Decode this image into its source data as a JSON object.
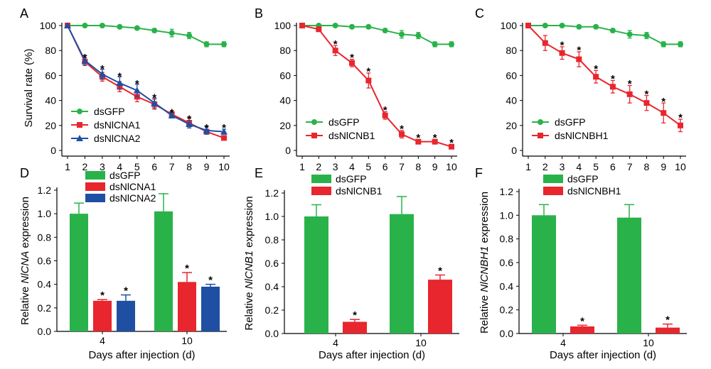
{
  "colors": {
    "dsGFP": "#2ab24a",
    "red": "#e8262d",
    "blue": "#1f4fa3"
  },
  "chart_data": [
    {
      "panel": "A",
      "type": "line",
      "x": [
        1,
        2,
        3,
        4,
        5,
        6,
        7,
        8,
        9,
        10
      ],
      "xticks": [
        "1",
        "2",
        "3",
        "4",
        "5",
        "6",
        "7",
        "8",
        "9",
        "10"
      ],
      "ylabel": "Survival rate (%)",
      "ylim": [
        0,
        100
      ],
      "yticks": [
        "0",
        "20",
        "40",
        "60",
        "80",
        "100"
      ],
      "series": [
        {
          "name": "dsGFP",
          "color": "dsGFP",
          "marker": "circle",
          "values": [
            100,
            100,
            100,
            99,
            98,
            96,
            94,
            92,
            85,
            85
          ],
          "err": [
            0,
            0,
            0,
            0,
            0,
            1.5,
            3,
            2.5,
            2,
            2
          ]
        },
        {
          "name": "dsNlCNA1",
          "color": "red",
          "marker": "square",
          "values": [
            100,
            71,
            59,
            51,
            43,
            37,
            29,
            22,
            15,
            10
          ],
          "err": [
            0,
            3,
            3.5,
            4,
            4,
            4,
            2,
            4,
            2,
            1
          ]
        },
        {
          "name": "dsNlCNA2",
          "color": "blue",
          "marker": "triangle",
          "values": [
            100,
            72,
            61,
            54,
            48,
            38,
            28,
            21,
            16,
            15
          ],
          "err": [
            0,
            4,
            4,
            5,
            5,
            4,
            2,
            3,
            3,
            2
          ]
        }
      ],
      "stars": [
        {
          "x": 2,
          "y": 76
        },
        {
          "x": 3,
          "y": 67
        },
        {
          "x": 4,
          "y": 61
        },
        {
          "x": 5,
          "y": 55
        },
        {
          "x": 6,
          "y": 44
        },
        {
          "x": 7,
          "y": 32
        },
        {
          "x": 8,
          "y": 27
        },
        {
          "x": 9,
          "y": 20
        },
        {
          "x": 10,
          "y": 20
        }
      ]
    },
    {
      "panel": "B",
      "type": "line",
      "x": [
        1,
        2,
        3,
        4,
        5,
        6,
        7,
        8,
        9,
        10
      ],
      "xticks": [
        "1",
        "2",
        "3",
        "4",
        "5",
        "6",
        "7",
        "8",
        "9",
        "10"
      ],
      "ylabel": "",
      "ylim": [
        0,
        100
      ],
      "yticks": [
        "0",
        "20",
        "40",
        "60",
        "80",
        "100"
      ],
      "series": [
        {
          "name": "dsGFP",
          "color": "dsGFP",
          "marker": "circle",
          "values": [
            100,
            100,
            100,
            99,
            99,
            96,
            93,
            92,
            85,
            85
          ],
          "err": [
            0,
            0,
            0,
            0,
            0,
            1.5,
            3,
            2.5,
            2,
            2
          ]
        },
        {
          "name": "dsNlCNB1",
          "color": "red",
          "marker": "square",
          "values": [
            100,
            97,
            80,
            70,
            56,
            28,
            13,
            7,
            7,
            3
          ],
          "err": [
            0,
            1,
            4,
            3,
            6,
            3,
            3,
            1,
            1,
            1
          ]
        }
      ],
      "stars": [
        {
          "x": 3,
          "y": 87
        },
        {
          "x": 4,
          "y": 76
        },
        {
          "x": 5,
          "y": 65
        },
        {
          "x": 6,
          "y": 34
        },
        {
          "x": 7,
          "y": 19
        },
        {
          "x": 8,
          "y": 12
        },
        {
          "x": 9,
          "y": 12
        },
        {
          "x": 10,
          "y": 8
        }
      ]
    },
    {
      "panel": "C",
      "type": "line",
      "x": [
        1,
        2,
        3,
        4,
        5,
        6,
        7,
        8,
        9,
        10
      ],
      "xticks": [
        "1",
        "2",
        "3",
        "4",
        "5",
        "6",
        "7",
        "8",
        "9",
        "10"
      ],
      "ylabel": "",
      "ylim": [
        0,
        100
      ],
      "yticks": [
        "0",
        "20",
        "40",
        "60",
        "80",
        "100"
      ],
      "series": [
        {
          "name": "dsGFP",
          "color": "dsGFP",
          "marker": "circle",
          "values": [
            100,
            100,
            100,
            99,
            99,
            96,
            93,
            92,
            85,
            85
          ],
          "err": [
            0,
            0,
            0,
            0,
            0,
            1.5,
            3,
            2.5,
            2,
            2
          ]
        },
        {
          "name": "dsNlCNBH1",
          "color": "red",
          "marker": "square",
          "values": [
            100,
            86,
            78,
            73,
            59,
            51,
            45,
            38,
            30,
            20
          ],
          "err": [
            0,
            6,
            5,
            6,
            5,
            5,
            7,
            6,
            8,
            5
          ]
        }
      ],
      "stars": [
        {
          "x": 3,
          "y": 86
        },
        {
          "x": 4,
          "y": 82
        },
        {
          "x": 5,
          "y": 67
        },
        {
          "x": 6,
          "y": 59
        },
        {
          "x": 7,
          "y": 55
        },
        {
          "x": 8,
          "y": 47
        },
        {
          "x": 9,
          "y": 41
        },
        {
          "x": 10,
          "y": 28
        }
      ]
    },
    {
      "panel": "D",
      "type": "bar",
      "categories": [
        "4",
        "10"
      ],
      "xlabel": "Days after injection (d)",
      "ylabel_pre": "Relative ",
      "ylabel_gene": "NlCNA",
      "ylabel_post": " expression",
      "ylim": [
        0,
        1.2
      ],
      "yticks": [
        "0.0",
        "0.2",
        "0.4",
        "0.6",
        "0.8",
        "1.0",
        "1.2"
      ],
      "series": [
        {
          "name": "dsGFP",
          "color": "dsGFP",
          "values": [
            1.0,
            1.02
          ],
          "err": [
            0.09,
            0.15
          ],
          "stars": [
            false,
            false
          ]
        },
        {
          "name": "dsNlCNA1",
          "color": "red",
          "values": [
            0.26,
            0.42
          ],
          "err": [
            0.01,
            0.08
          ],
          "stars": [
            true,
            true
          ]
        },
        {
          "name": "dsNlCNA2",
          "color": "blue",
          "values": [
            0.26,
            0.38
          ],
          "err": [
            0.05,
            0.02
          ],
          "stars": [
            true,
            true
          ]
        }
      ]
    },
    {
      "panel": "E",
      "type": "bar",
      "categories": [
        "4",
        "10"
      ],
      "xlabel": "Days after injection (d)",
      "ylabel_pre": "Relative ",
      "ylabel_gene": "NlCNB1",
      "ylabel_post": " expression",
      "ylim": [
        0,
        1.2
      ],
      "yticks": [
        "0.0",
        "0.2",
        "0.4",
        "0.6",
        "0.8",
        "1.0",
        "1.2"
      ],
      "series": [
        {
          "name": "dsGFP",
          "color": "dsGFP",
          "values": [
            1.0,
            1.02
          ],
          "err": [
            0.1,
            0.15
          ],
          "stars": [
            false,
            false
          ]
        },
        {
          "name": "dsNlCNB1",
          "color": "red",
          "values": [
            0.1,
            0.46
          ],
          "err": [
            0.02,
            0.04
          ],
          "stars": [
            true,
            true
          ]
        }
      ]
    },
    {
      "panel": "F",
      "type": "bar",
      "categories": [
        "4",
        "10"
      ],
      "xlabel": "Days after injection (d)",
      "ylabel_pre": "Relative ",
      "ylabel_gene": "NlCNBH1",
      "ylabel_post": " expression",
      "ylim": [
        0,
        1.2
      ],
      "yticks": [
        "0.0",
        "0.2",
        "0.4",
        "0.6",
        "0.8",
        "1.0",
        "1.2"
      ],
      "series": [
        {
          "name": "dsGFP",
          "color": "dsGFP",
          "values": [
            1.0,
            0.98
          ],
          "err": [
            0.09,
            0.11
          ],
          "stars": [
            false,
            false
          ]
        },
        {
          "name": "dsNlCNBH1",
          "color": "red",
          "values": [
            0.06,
            0.05
          ],
          "err": [
            0.01,
            0.03
          ],
          "stars": [
            true,
            true
          ]
        }
      ]
    }
  ]
}
